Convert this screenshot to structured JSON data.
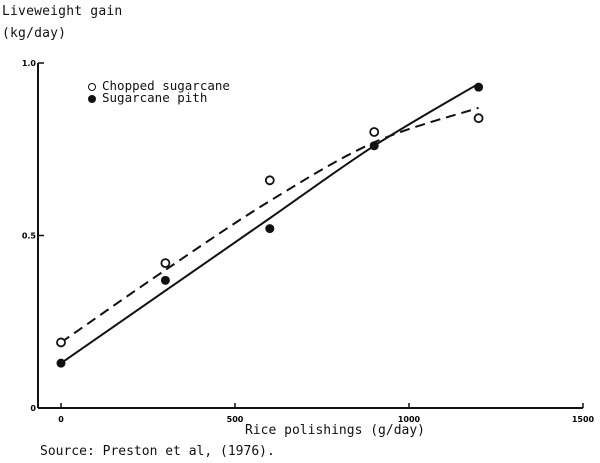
{
  "chart_data": {
    "type": "line",
    "title": "",
    "ylabel_line1": "Liveweight gain",
    "ylabel_line2": "(kg/day)",
    "xlabel": "Rice polishings (g/day)",
    "source": "Source:  Preston et al, (1976).",
    "xlim": [
      0,
      1500
    ],
    "ylim": [
      0,
      1.0
    ],
    "x_ticks": [
      "0",
      "500",
      "1000",
      "1500"
    ],
    "y_ticks": [
      "0",
      "0.5",
      "1.0"
    ],
    "x": [
      0,
      300,
      600,
      900,
      1200
    ],
    "series": [
      {
        "name": "Chopped sugarcane",
        "marker": "open-circle",
        "line": "dashed",
        "values": [
          0.19,
          0.42,
          0.66,
          0.8,
          0.84
        ],
        "fit": [
          [
            0,
            0.19
          ],
          [
            300,
            0.4
          ],
          [
            600,
            0.6
          ],
          [
            900,
            0.77
          ],
          [
            1200,
            0.87
          ]
        ]
      },
      {
        "name": "Sugarcane pith",
        "marker": "filled-circle",
        "line": "solid",
        "values": [
          0.13,
          0.37,
          0.52,
          0.76,
          0.93
        ],
        "fit": [
          [
            0,
            0.13
          ],
          [
            300,
            0.34
          ],
          [
            600,
            0.55
          ],
          [
            900,
            0.76
          ],
          [
            1200,
            0.94
          ]
        ]
      }
    ],
    "legend_position": "upper-left",
    "grid": false
  },
  "legend": {
    "item1": "Chopped sugarcane",
    "item2": "Sugarcane pith"
  }
}
